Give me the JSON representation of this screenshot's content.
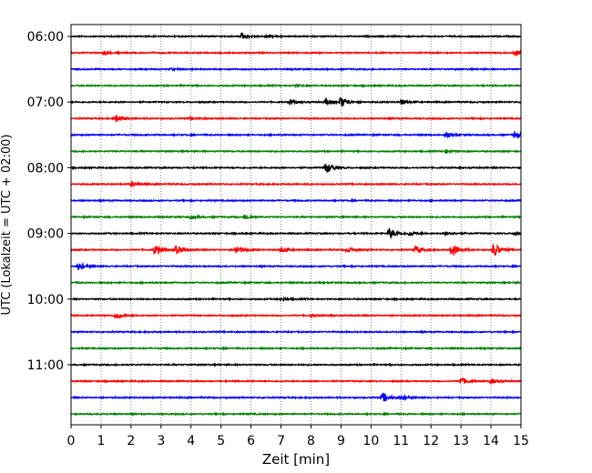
{
  "chart_data": {
    "type": "line",
    "title": "",
    "xlabel": "Zeit  [min]",
    "ylabel": "UTC (Lokalzeit = UTC + 02:00)",
    "xlim": [
      0,
      15
    ],
    "x_ticks": [
      "0",
      "1",
      "2",
      "3",
      "4",
      "5",
      "6",
      "7",
      "8",
      "9",
      "10",
      "11",
      "12",
      "13",
      "14",
      "15"
    ],
    "y_tick_labels": [
      "06:00",
      "07:00",
      "08:00",
      "09:00",
      "10:00",
      "11:00"
    ],
    "grid": "vertical-dotted",
    "colors": [
      "#000000",
      "#ff0000",
      "#0000ff",
      "#008000"
    ],
    "traces": [
      {
        "start": "06:00",
        "events": [
          {
            "t": 5.7,
            "amp": 0.35
          },
          {
            "t": 6.5,
            "amp": 0.15
          }
        ]
      },
      {
        "start": "06:15",
        "events": [
          {
            "t": 1.1,
            "amp": 0.2
          },
          {
            "t": 14.8,
            "amp": 0.35
          }
        ]
      },
      {
        "start": "06:30",
        "events": [
          {
            "t": 3.3,
            "amp": 0.1
          }
        ]
      },
      {
        "start": "06:45",
        "events": [
          {
            "t": 7.5,
            "amp": 0.1
          }
        ]
      },
      {
        "start": "07:00",
        "events": [
          {
            "t": 7.3,
            "amp": 0.3
          },
          {
            "t": 8.5,
            "amp": 0.4
          },
          {
            "t": 9.0,
            "amp": 0.7
          },
          {
            "t": 11.0,
            "amp": 0.3
          }
        ]
      },
      {
        "start": "07:15",
        "events": [
          {
            "t": 1.5,
            "amp": 0.45
          },
          {
            "t": 4.0,
            "amp": 0.15
          }
        ]
      },
      {
        "start": "07:30",
        "events": [
          {
            "t": 12.5,
            "amp": 0.3
          },
          {
            "t": 14.8,
            "amp": 0.55
          }
        ]
      },
      {
        "start": "07:45",
        "events": [
          {
            "t": 12.5,
            "amp": 0.2
          }
        ]
      },
      {
        "start": "08:00",
        "events": [
          {
            "t": 8.5,
            "amp": 0.75
          }
        ]
      },
      {
        "start": "08:15",
        "events": [
          {
            "t": 2.0,
            "amp": 0.3
          }
        ]
      },
      {
        "start": "08:30",
        "events": []
      },
      {
        "start": "08:45",
        "events": [
          {
            "t": 4.0,
            "amp": 0.2
          },
          {
            "t": 5.8,
            "amp": 0.3
          }
        ]
      },
      {
        "start": "09:00",
        "events": [
          {
            "t": 10.6,
            "amp": 0.7
          },
          {
            "t": 11.3,
            "amp": 0.35
          },
          {
            "t": 12.5,
            "amp": 0.3
          },
          {
            "t": 14.8,
            "amp": 0.3
          }
        ]
      },
      {
        "start": "09:15",
        "events": [
          {
            "t": 2.8,
            "amp": 0.75
          },
          {
            "t": 3.5,
            "amp": 0.5
          },
          {
            "t": 5.5,
            "amp": 0.6
          },
          {
            "t": 7.0,
            "amp": 0.35
          },
          {
            "t": 9.2,
            "amp": 0.35
          },
          {
            "t": 11.5,
            "amp": 0.5
          },
          {
            "t": 12.7,
            "amp": 0.95
          },
          {
            "t": 14.1,
            "amp": 0.95
          }
        ]
      },
      {
        "start": "09:30",
        "events": [
          {
            "t": 0.25,
            "amp": 0.5
          }
        ]
      },
      {
        "start": "09:45",
        "events": []
      },
      {
        "start": "10:00",
        "events": [
          {
            "t": 7.0,
            "amp": 0.2
          }
        ]
      },
      {
        "start": "10:15",
        "events": [
          {
            "t": 1.5,
            "amp": 0.45
          },
          {
            "t": 8.0,
            "amp": 0.15
          }
        ]
      },
      {
        "start": "10:30",
        "events": []
      },
      {
        "start": "10:45",
        "events": []
      },
      {
        "start": "11:00",
        "events": []
      },
      {
        "start": "11:15",
        "events": [
          {
            "t": 13.0,
            "amp": 0.5
          },
          {
            "t": 14.0,
            "amp": 0.3
          }
        ]
      },
      {
        "start": "11:30",
        "events": [
          {
            "t": 10.4,
            "amp": 0.65
          },
          {
            "t": 11.0,
            "amp": 0.3
          }
        ]
      },
      {
        "start": "11:45",
        "events": []
      }
    ]
  }
}
